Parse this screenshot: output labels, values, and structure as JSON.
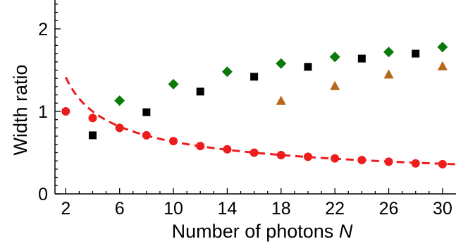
{
  "chart_data": {
    "type": "scatter",
    "xlabel": "Number of photons ",
    "xlabel_italic": "N",
    "ylabel": "Width ratio",
    "xlim": [
      1.2,
      31
    ],
    "ylim": [
      0,
      2.35
    ],
    "xticks": [
      2,
      6,
      10,
      14,
      18,
      22,
      26,
      30
    ],
    "xtick_labels": [
      "2",
      "6",
      "10",
      "14",
      "18",
      "22",
      "26",
      "30"
    ],
    "yticks": [
      0,
      1,
      2
    ],
    "ytick_labels": [
      "0",
      "1",
      "2"
    ],
    "grid": false,
    "series": [
      {
        "marker": "circle",
        "color": "#ee1c1c",
        "x": [
          2,
          4,
          6,
          8,
          10,
          12,
          14,
          16,
          18,
          20,
          22,
          24,
          26,
          28,
          30
        ],
        "y": [
          1.0,
          0.92,
          0.8,
          0.71,
          0.64,
          0.58,
          0.54,
          0.5,
          0.47,
          0.45,
          0.43,
          0.41,
          0.39,
          0.37,
          0.36
        ]
      },
      {
        "marker": "square",
        "color": "#000000",
        "x": [
          4,
          8,
          12,
          16,
          20,
          24,
          28
        ],
        "y": [
          0.71,
          0.99,
          1.24,
          1.42,
          1.54,
          1.64,
          1.7
        ]
      },
      {
        "marker": "diamond",
        "color": "#0a7a0a",
        "x": [
          6,
          10,
          14,
          18,
          22,
          26,
          30
        ],
        "y": [
          1.13,
          1.33,
          1.48,
          1.58,
          1.66,
          1.72,
          1.78
        ]
      },
      {
        "marker": "triangle",
        "color": "#b8661a",
        "x": [
          18,
          22,
          26,
          30
        ],
        "y": [
          1.13,
          1.31,
          1.45,
          1.55
        ]
      }
    ],
    "fit_curve": {
      "style": "dashed",
      "color": "#ee1c1c",
      "function": "2/sqrt(N)",
      "x_range": [
        2,
        31
      ]
    }
  }
}
